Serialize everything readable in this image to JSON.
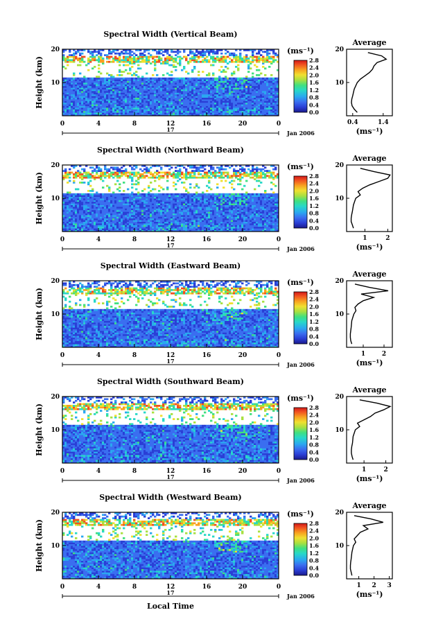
{
  "chart_data": [
    {
      "type": "heatmap",
      "title": "Spectral Width (Vertical Beam)",
      "ylabel": "Height (km)",
      "ylim": [
        0,
        20
      ],
      "yticks": [
        "20",
        "10"
      ],
      "xlim": [
        0,
        24
      ],
      "xticks": [
        "0",
        "4",
        "8",
        "12",
        "16",
        "20",
        "0"
      ],
      "date_marker": "17",
      "date_label": "Jan 2006",
      "colorbar": {
        "unit": "(ms⁻¹)",
        "labels": [
          "2.8",
          "2.4",
          "2.0",
          "1.6",
          "1.2",
          "0.8",
          "0.4",
          "0.0"
        ]
      },
      "average_profile": {
        "title": "Average",
        "xlabel": "(ms⁻¹)",
        "xticks": [
          "0.4",
          "1.4"
        ],
        "xlim": [
          0.2,
          1.7
        ],
        "yticks": [
          "20",
          "10"
        ],
        "height_km": [
          1,
          2,
          3,
          4,
          5,
          6,
          8,
          10,
          11,
          12,
          13,
          14,
          15,
          16,
          17,
          18,
          19
        ],
        "width": [
          0.55,
          0.45,
          0.38,
          0.36,
          0.37,
          0.4,
          0.45,
          0.55,
          0.65,
          0.8,
          0.95,
          1.05,
          1.1,
          1.2,
          1.5,
          1.35,
          0.9
        ]
      }
    },
    {
      "type": "heatmap",
      "title": "Spectral Width (Northward Beam)",
      "ylabel": "Height (km)",
      "ylim": [
        0,
        20
      ],
      "yticks": [
        "20",
        "10"
      ],
      "xlim": [
        0,
        24
      ],
      "xticks": [
        "0",
        "4",
        "8",
        "12",
        "16",
        "20",
        "0"
      ],
      "date_marker": "17",
      "date_label": "Jan 2006",
      "colorbar": {
        "unit": "(ms⁻¹)",
        "labels": [
          "2.8",
          "2.4",
          "2.0",
          "1.6",
          "1.2",
          "0.8",
          "0.4",
          "0.0"
        ]
      },
      "average_profile": {
        "title": "Average",
        "xlabel": "(ms⁻¹)",
        "xticks": [
          "1",
          "2"
        ],
        "xlim": [
          0.2,
          2.2
        ],
        "yticks": [
          "20",
          "10"
        ],
        "height_km": [
          1,
          2,
          3,
          4,
          5,
          6,
          8,
          10,
          11,
          12,
          13,
          14,
          15,
          16,
          17,
          18,
          19
        ],
        "width": [
          0.5,
          0.45,
          0.4,
          0.4,
          0.42,
          0.45,
          0.5,
          0.6,
          0.8,
          0.7,
          0.9,
          1.2,
          1.6,
          2.0,
          2.1,
          1.4,
          0.8
        ]
      }
    },
    {
      "type": "heatmap",
      "title": "Spectral Width (Eastward Beam)",
      "ylabel": "Height (km)",
      "ylim": [
        0,
        20
      ],
      "yticks": [
        "20",
        "10"
      ],
      "xlim": [
        0,
        24
      ],
      "xticks": [
        "0",
        "4",
        "8",
        "12",
        "16",
        "20",
        "0"
      ],
      "date_marker": "17",
      "date_label": "Jan 2006",
      "colorbar": {
        "unit": "(ms⁻¹)",
        "labels": [
          "2.8",
          "2.4",
          "2.0",
          "1.6",
          "1.2",
          "0.8",
          "0.4",
          "0.0"
        ]
      },
      "average_profile": {
        "title": "Average",
        "xlabel": "(ms⁻¹)",
        "xticks": [
          "1",
          "2"
        ],
        "xlim": [
          0.2,
          2.4
        ],
        "yticks": [
          "20",
          "10"
        ],
        "height_km": [
          1,
          2,
          3,
          4,
          5,
          6,
          8,
          10,
          11,
          12,
          13,
          14,
          15,
          16,
          17,
          18,
          19
        ],
        "width": [
          0.45,
          0.4,
          0.38,
          0.38,
          0.4,
          0.42,
          0.45,
          0.55,
          0.65,
          0.6,
          0.75,
          1.0,
          1.5,
          0.9,
          2.2,
          1.3,
          0.6
        ]
      }
    },
    {
      "type": "heatmap",
      "title": "Spectral Width (Southward Beam)",
      "ylabel": "Height (km)",
      "ylim": [
        0,
        20
      ],
      "yticks": [
        "20",
        "10"
      ],
      "xlim": [
        0,
        24
      ],
      "xticks": [
        "0",
        "4",
        "8",
        "12",
        "16",
        "20",
        "0"
      ],
      "date_marker": "17",
      "date_label": "Jan 2006",
      "colorbar": {
        "unit": "(ms⁻¹)",
        "labels": [
          "2.8",
          "2.4",
          "2.0",
          "1.6",
          "1.2",
          "0.8",
          "0.4",
          "0.0"
        ]
      },
      "average_profile": {
        "title": "Average",
        "xlabel": "(ms⁻¹)",
        "xticks": [
          "1",
          "2"
        ],
        "xlim": [
          0.2,
          2.3
        ],
        "yticks": [
          "20",
          "10"
        ],
        "height_km": [
          1,
          2,
          3,
          4,
          5,
          6,
          8,
          10,
          11,
          12,
          13,
          14,
          15,
          16,
          17,
          18,
          19
        ],
        "width": [
          0.5,
          0.45,
          0.42,
          0.42,
          0.44,
          0.47,
          0.5,
          0.6,
          0.8,
          0.7,
          1.0,
          1.3,
          1.5,
          1.9,
          2.2,
          1.6,
          0.8
        ]
      }
    },
    {
      "type": "heatmap",
      "title": "Spectral Width (Westward Beam)",
      "ylabel": "Height (km)",
      "ylim": [
        0,
        20
      ],
      "yticks": [
        "20",
        "10"
      ],
      "xlim": [
        0,
        24
      ],
      "xticks": [
        "0",
        "4",
        "8",
        "12",
        "16",
        "20",
        "0"
      ],
      "date_marker": "17",
      "date_label": "Jan 2006",
      "xlabel": "Local Time",
      "colorbar": {
        "unit": "(ms⁻¹)",
        "labels": [
          "2.8",
          "2.4",
          "2.0",
          "1.6",
          "1.2",
          "0.8",
          "0.4",
          "0.0"
        ]
      },
      "average_profile": {
        "title": "Average",
        "xlabel": "(ms⁻¹)",
        "xticks": [
          "1",
          "2",
          "3"
        ],
        "xlim": [
          0.2,
          3.2
        ],
        "yticks": [
          "20",
          "10"
        ],
        "height_km": [
          1,
          2,
          3,
          4,
          5,
          6,
          8,
          10,
          11,
          12,
          13,
          14,
          15,
          16,
          17,
          18,
          19
        ],
        "width": [
          0.55,
          0.5,
          0.45,
          0.45,
          0.47,
          0.5,
          0.55,
          0.65,
          0.8,
          0.7,
          0.9,
          1.1,
          1.6,
          1.3,
          2.6,
          1.8,
          0.7
        ]
      }
    }
  ],
  "colors": {
    "colormap": [
      "#1a1a8c",
      "#2a3fd6",
      "#3a6ef0",
      "#2aa8f0",
      "#28d8c8",
      "#40e080",
      "#a8e040",
      "#f0e030",
      "#f8a020",
      "#f05020",
      "#d01818"
    ]
  }
}
